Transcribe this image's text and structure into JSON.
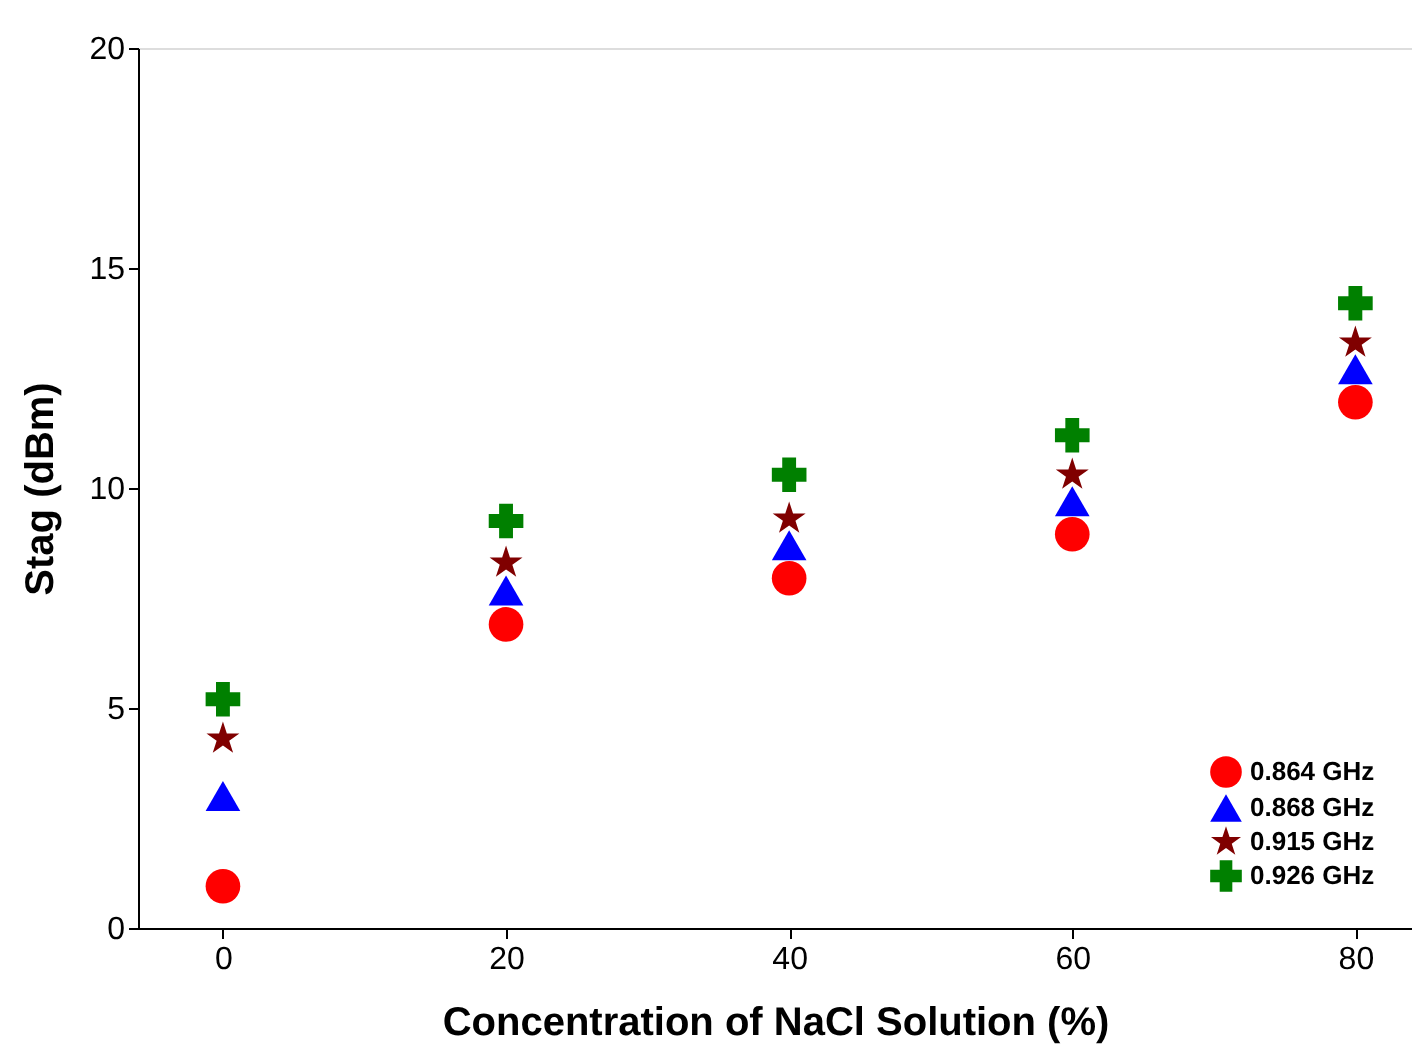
{
  "chart_data": {
    "type": "scatter",
    "xlabel": "Concentration of NaCl Solution (%)",
    "ylabel": "Stag (dBm)",
    "x": [
      0,
      20,
      40,
      60,
      80
    ],
    "series": [
      {
        "name": "0.864 GHz",
        "color": "#ff0000",
        "marker": "circle",
        "values": [
          0.95,
          6.9,
          7.95,
          8.95,
          11.95
        ]
      },
      {
        "name": "0.868 GHz",
        "color": "#0000ff",
        "marker": "triangle",
        "values": [
          3.0,
          7.67,
          8.7,
          9.7,
          12.7
        ]
      },
      {
        "name": "0.915 GHz",
        "color": "#800000",
        "marker": "star",
        "values": [
          4.3,
          8.3,
          9.3,
          10.3,
          13.3
        ]
      },
      {
        "name": "0.926 GHz",
        "color": "#008000",
        "marker": "cross",
        "values": [
          5.2,
          9.25,
          10.3,
          11.2,
          14.2
        ]
      }
    ],
    "xlim": [
      -6,
      84
    ],
    "xticks": [
      0,
      20,
      40,
      60,
      80
    ],
    "ylim": [
      0,
      20
    ],
    "yticks": [
      0,
      5,
      10,
      15,
      20
    ],
    "grid": false,
    "legend": "bottom right"
  }
}
